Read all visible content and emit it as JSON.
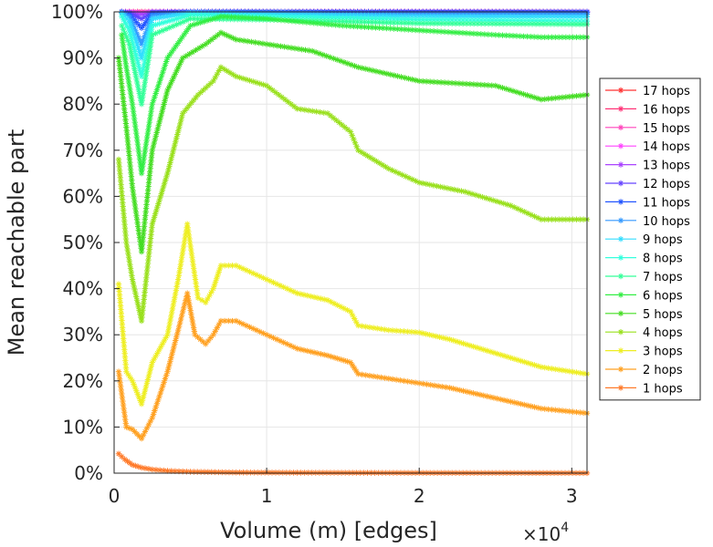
{
  "chart_data": {
    "type": "line",
    "title": "",
    "xlabel": "Volume (m) [edges]",
    "ylabel": "Mean reachable part",
    "x_exponent_label": "×10",
    "x_exponent_power": "4",
    "xlim": [
      0,
      31000
    ],
    "ylim": [
      0,
      100
    ],
    "x_tick_labels": [
      "0",
      "1",
      "2",
      "3"
    ],
    "x_tick_values": [
      0,
      10000,
      20000,
      30000
    ],
    "y_tick_labels": [
      "0%",
      "10%",
      "20%",
      "30%",
      "40%",
      "50%",
      "60%",
      "70%",
      "80%",
      "90%",
      "100%"
    ],
    "y_tick_values": [
      0,
      10,
      20,
      30,
      40,
      50,
      60,
      70,
      80,
      90,
      100
    ],
    "grid": true,
    "legend_position": "right",
    "marker": "asterisk",
    "series": [
      {
        "name": "17 hops",
        "color": "#ff3333",
        "x": [
          500,
          1000,
          1800,
          2500,
          5000,
          10000,
          20000,
          31000
        ],
        "y": [
          100,
          100,
          100,
          100,
          100,
          100,
          100,
          100
        ]
      },
      {
        "name": "16 hops",
        "color": "#ff3377",
        "x": [
          500,
          1000,
          1800,
          2500,
          5000,
          10000,
          20000,
          31000
        ],
        "y": [
          100,
          100,
          100,
          100,
          100,
          100,
          100,
          100
        ]
      },
      {
        "name": "15 hops",
        "color": "#ff44bb",
        "x": [
          500,
          1000,
          1800,
          2500,
          5000,
          10000,
          20000,
          31000
        ],
        "y": [
          100,
          100,
          99.9,
          100,
          100,
          100,
          100,
          100
        ]
      },
      {
        "name": "14 hops",
        "color": "#ff44ff",
        "x": [
          500,
          1000,
          1800,
          2500,
          5000,
          10000,
          20000,
          31000
        ],
        "y": [
          100,
          100,
          99.8,
          100,
          100,
          100,
          100,
          100
        ]
      },
      {
        "name": "13 hops",
        "color": "#aa44ff",
        "x": [
          500,
          1000,
          1800,
          2500,
          5000,
          10000,
          20000,
          31000
        ],
        "y": [
          100,
          99.9,
          99.5,
          100,
          100,
          100,
          100,
          100
        ]
      },
      {
        "name": "12 hops",
        "color": "#6644ff",
        "x": [
          500,
          1000,
          1800,
          2500,
          5000,
          10000,
          20000,
          31000
        ],
        "y": [
          100,
          99.8,
          98.5,
          99.9,
          100,
          100,
          100,
          100
        ]
      },
      {
        "name": "11 hops",
        "color": "#2255ff",
        "x": [
          500,
          1000,
          1800,
          2500,
          5000,
          10000,
          20000,
          31000
        ],
        "y": [
          100,
          99.5,
          96.5,
          99.7,
          100,
          100,
          99.9,
          99.9
        ]
      },
      {
        "name": "10 hops",
        "color": "#3399ff",
        "x": [
          500,
          1000,
          1800,
          2500,
          5000,
          10000,
          20000,
          31000
        ],
        "y": [
          99.9,
          99,
          93,
          99.2,
          99.9,
          99.8,
          99.6,
          99.5
        ]
      },
      {
        "name": "9 hops",
        "color": "#33ddff",
        "x": [
          500,
          1000,
          1800,
          2500,
          5000,
          10000,
          20000,
          31000
        ],
        "y": [
          99.7,
          98,
          90,
          98.5,
          99.7,
          99.4,
          99.0,
          98.9
        ]
      },
      {
        "name": "8 hops",
        "color": "#33ffdd",
        "x": [
          500,
          1000,
          1800,
          2500,
          5000,
          10000,
          20000,
          31000
        ],
        "y": [
          99,
          96,
          86,
          97,
          99.3,
          99.0,
          98.3,
          98.0
        ]
      },
      {
        "name": "7 hops",
        "color": "#33ff99",
        "x": [
          500,
          1000,
          1800,
          2500,
          5000,
          10000,
          20000,
          31000
        ],
        "y": [
          97,
          93,
          80,
          95,
          98.5,
          98.3,
          97.5,
          97.3
        ]
      },
      {
        "name": "6 hops",
        "color": "#33ee44",
        "x": [
          500,
          800,
          1200,
          1800,
          2500,
          3500,
          5000,
          7000,
          10000,
          15000,
          20000,
          25000,
          28000,
          31000
        ],
        "y": [
          95,
          88,
          80,
          65,
          80,
          90,
          97,
          99,
          98.5,
          97,
          96,
          95,
          94.5,
          94.5
        ]
      },
      {
        "name": "5 hops",
        "color": "#44dd22",
        "x": [
          300,
          800,
          1200,
          1800,
          2500,
          3500,
          4500,
          6000,
          7000,
          8000,
          10000,
          13000,
          16000,
          20000,
          25000,
          28000,
          31000
        ],
        "y": [
          90,
          75,
          62,
          48,
          70,
          83,
          90,
          93,
          95.5,
          94,
          93,
          91.5,
          88,
          85,
          84,
          81,
          82
        ]
      },
      {
        "name": "4 hops",
        "color": "#99e01c",
        "x": [
          300,
          800,
          1200,
          1800,
          2500,
          3500,
          4500,
          5500,
          6500,
          7000,
          8000,
          10000,
          12000,
          14000,
          15500,
          16000,
          18000,
          20000,
          23000,
          26000,
          28000,
          31000
        ],
        "y": [
          68,
          50,
          42,
          33,
          54,
          65,
          78,
          82,
          85,
          88,
          86,
          84,
          79,
          78,
          74,
          70,
          66,
          63,
          61,
          58,
          55,
          55
        ]
      },
      {
        "name": "3 hops",
        "color": "#eeee22",
        "x": [
          300,
          800,
          1200,
          1800,
          2500,
          3500,
          4200,
          4800,
          5500,
          6000,
          6500,
          7000,
          8000,
          10000,
          12000,
          14000,
          15500,
          16000,
          18000,
          20000,
          22000,
          24000,
          26000,
          28000,
          31000
        ],
        "y": [
          41,
          22,
          20,
          15,
          24,
          30,
          42,
          54,
          38,
          37,
          40,
          45,
          45,
          42,
          39,
          37.5,
          35,
          32,
          31,
          30.5,
          29,
          27,
          25,
          23,
          21.5
        ]
      },
      {
        "name": "2 hops",
        "color": "#ffa020",
        "x": [
          300,
          800,
          1200,
          1800,
          2500,
          3500,
          4200,
          4800,
          5300,
          6000,
          6500,
          7000,
          8000,
          10000,
          12000,
          14000,
          15500,
          16000,
          18000,
          20000,
          22000,
          24000,
          26000,
          28000,
          31000
        ],
        "y": [
          22,
          10,
          9.5,
          7.5,
          12,
          22,
          31,
          39,
          30,
          28,
          30,
          33,
          33,
          30,
          27,
          25.5,
          24,
          21.5,
          20.5,
          19.5,
          18.5,
          17,
          15.5,
          14,
          13
        ]
      },
      {
        "name": "1 hops",
        "color": "#ff7a2a",
        "x": [
          300,
          700,
          1200,
          1800,
          2500,
          3500,
          5000,
          8000,
          12000,
          20000,
          31000
        ],
        "y": [
          4.2,
          3,
          1.8,
          1.2,
          0.8,
          0.5,
          0.3,
          0.15,
          0.1,
          0.05,
          0.02
        ]
      }
    ]
  }
}
